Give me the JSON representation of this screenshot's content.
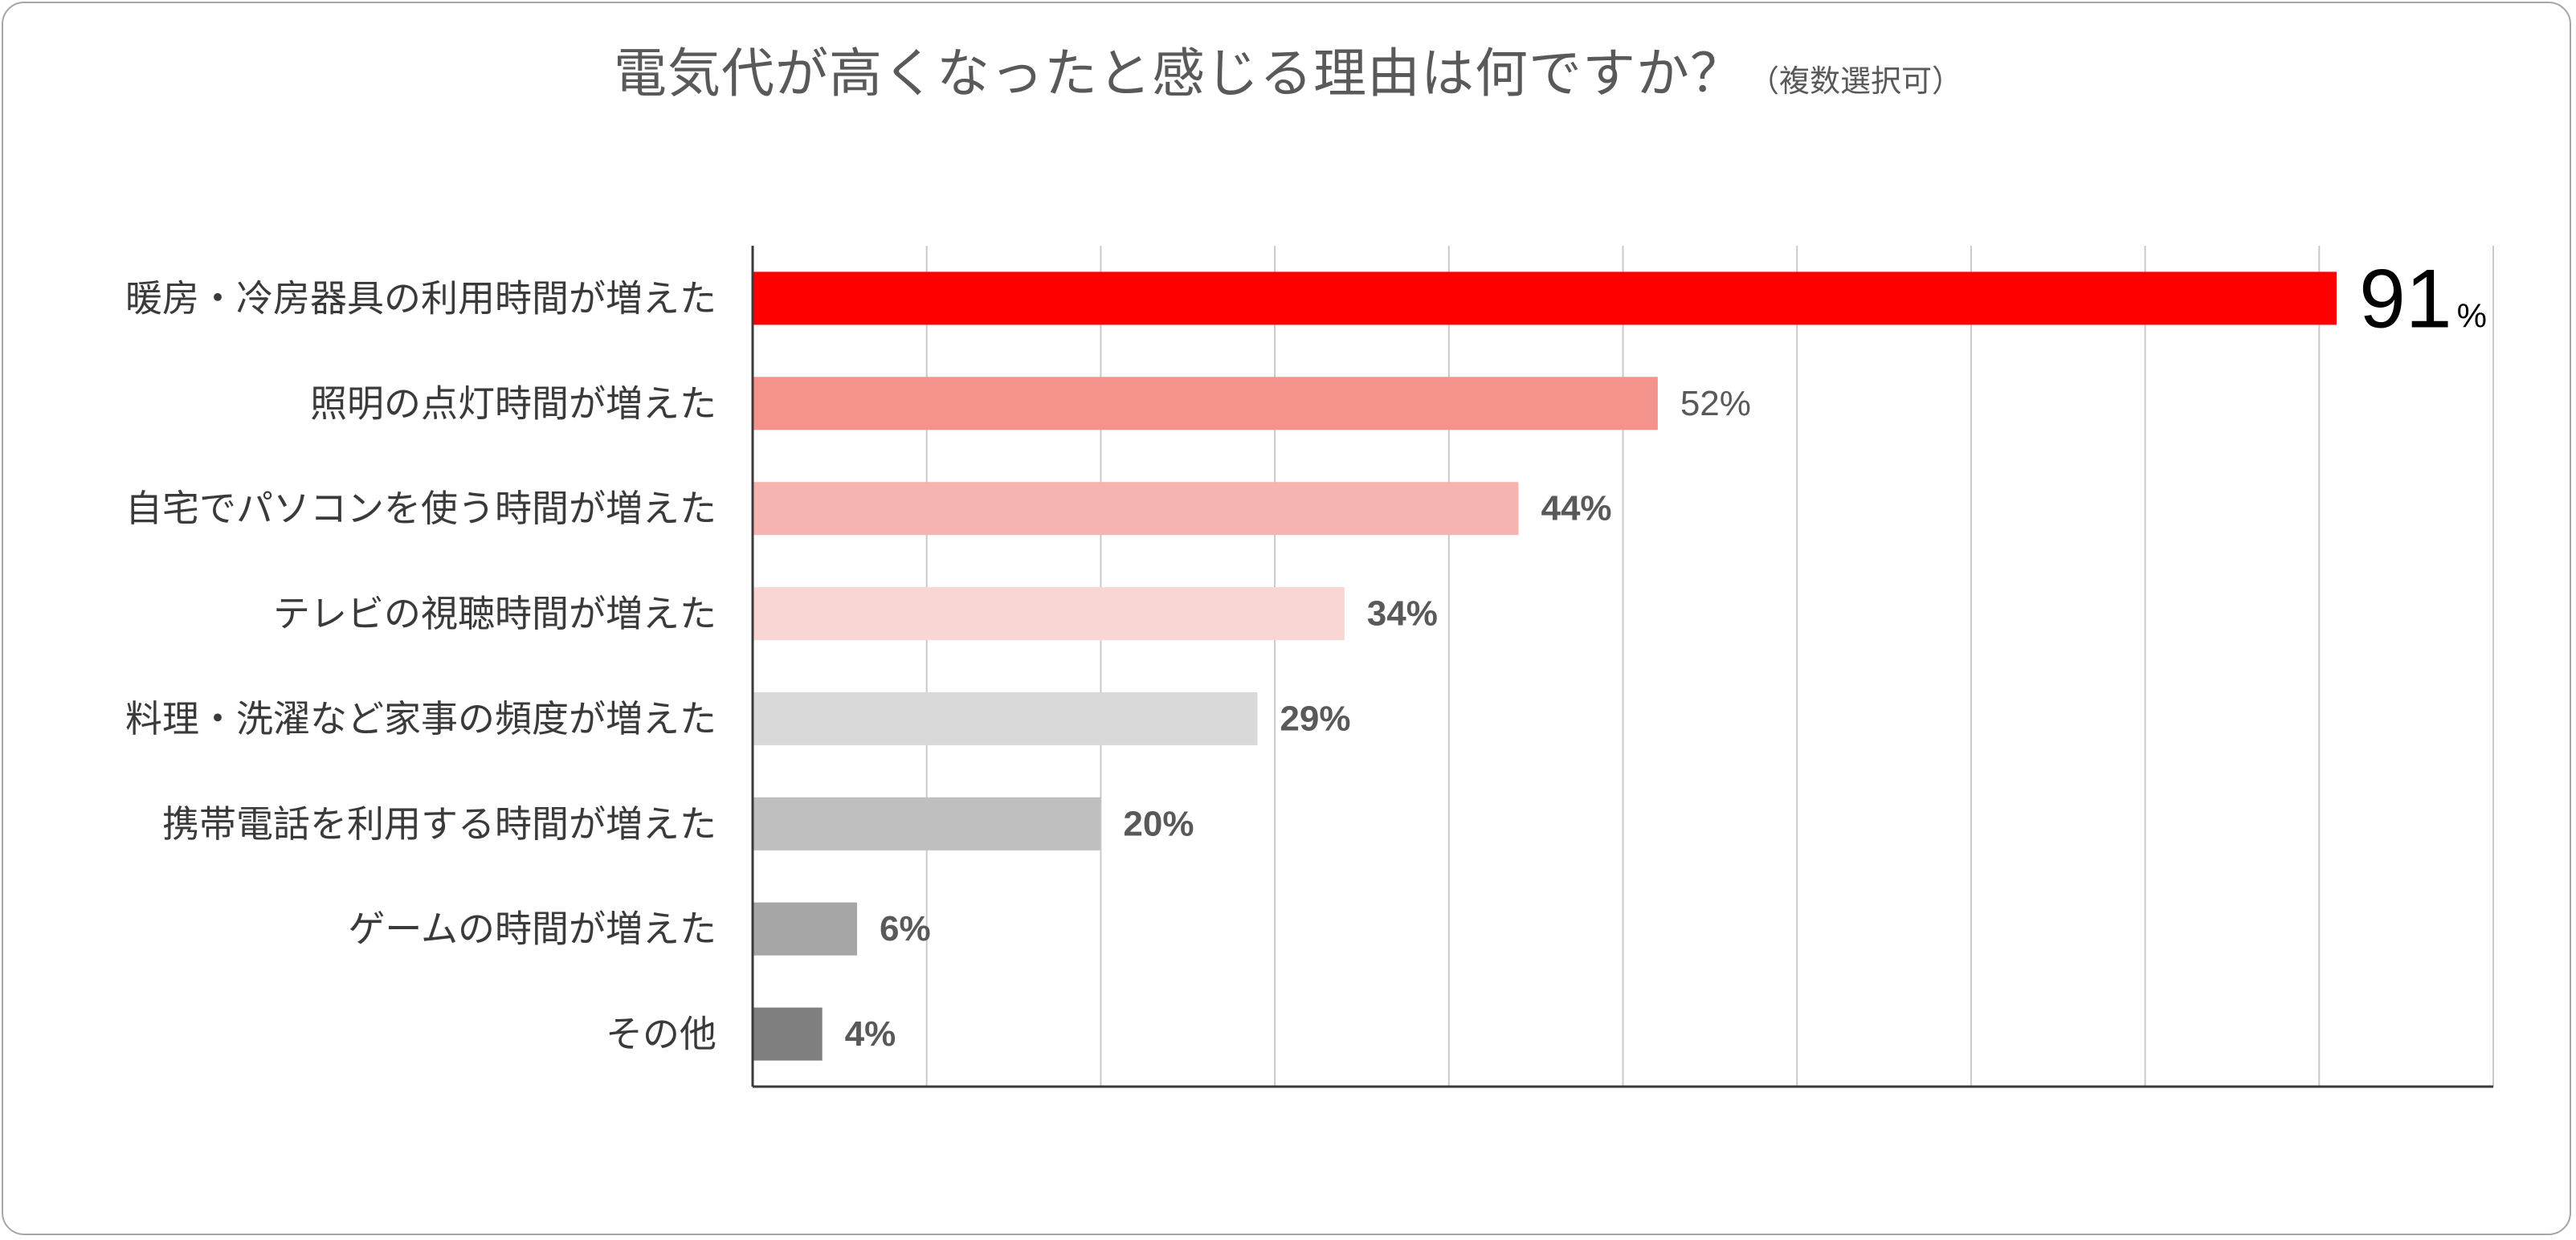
{
  "chart_data": {
    "type": "bar",
    "orientation": "horizontal",
    "title": "電気代が高くなったと感じる理由は何ですか？",
    "subtitle": "（複数選択可）",
    "categories": [
      "暖房・冷房器具の利用時間が増えた",
      "照明の点灯時間が増えた",
      "自宅でパソコンを使う時間が増えた",
      "テレビの視聴時間が増えた",
      "料理・洗濯など家事の頻度が増えた",
      "携帯電話を利用する時間が増えた",
      "ゲームの時間が増えた",
      "その他"
    ],
    "values": [
      91,
      52,
      44,
      34,
      29,
      20,
      6,
      4
    ],
    "value_labels": [
      "91",
      "52%",
      "44%",
      "34%",
      "29%",
      "20%",
      "6%",
      "4%"
    ],
    "highlight_unit": "%",
    "bar_colors": [
      "#ff0000",
      "#f4928c",
      "#f6b4b0",
      "#f9d5d3",
      "#d9d9d9",
      "#bfbfbf",
      "#a6a6a6",
      "#7f7f7f"
    ],
    "xlim": [
      0,
      100
    ],
    "grid": true,
    "legend": "none",
    "unit": "%"
  }
}
